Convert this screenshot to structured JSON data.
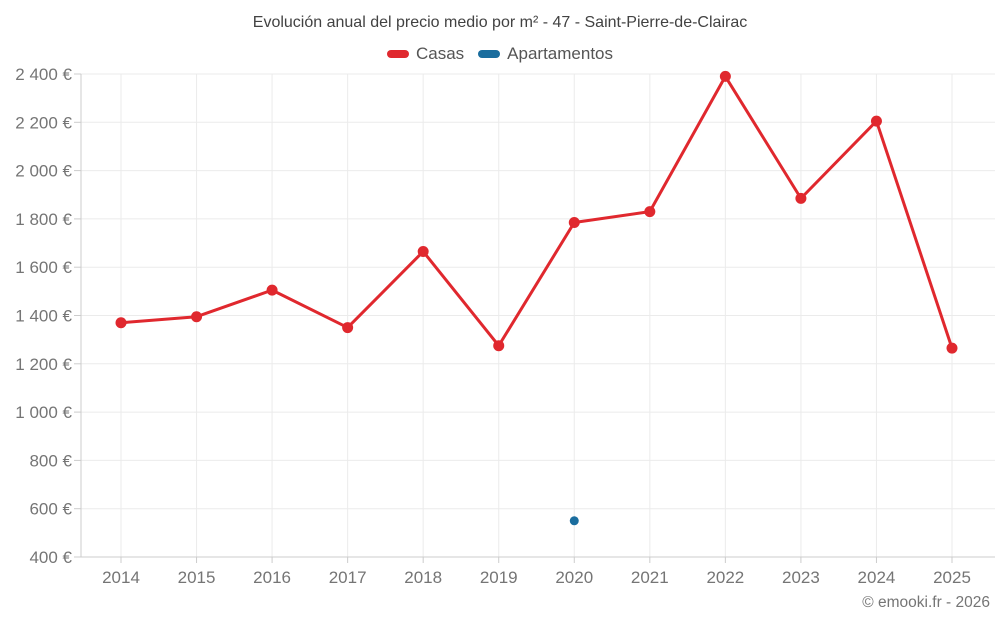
{
  "title": "Evolución anual del precio medio por m² - 47 - Saint-Pierre-de-Clairac",
  "copyright": "© emooki.fr - 2026",
  "legend": [
    {
      "label": "Casas",
      "color": "#e0282e"
    },
    {
      "label": "Apartamentos",
      "color": "#1a6d9e"
    }
  ],
  "colors": {
    "grid": "#ebebeb",
    "axis": "#cccccc",
    "tick": "#cccccc",
    "tick_label": "#757575",
    "title": "#424242",
    "casas": "#e0282e",
    "apartamentos": "#1a6d9e"
  },
  "chart_data": {
    "type": "line",
    "title": "Evolución anual del precio medio por m² - 47 - Saint-Pierre-de-Clairac",
    "categories": [
      "2014",
      "2015",
      "2016",
      "2017",
      "2018",
      "2019",
      "2020",
      "2021",
      "2022",
      "2023",
      "2024",
      "2025"
    ],
    "series": [
      {
        "name": "Casas",
        "color": "#e0282e",
        "values": [
          1370,
          1395,
          1505,
          1350,
          1665,
          1275,
          1785,
          1830,
          2390,
          1885,
          2205,
          1265
        ]
      },
      {
        "name": "Apartamentos",
        "color": "#1a6d9e",
        "values": [
          null,
          null,
          null,
          null,
          null,
          null,
          550,
          null,
          null,
          null,
          null,
          null
        ]
      }
    ],
    "xlabel": "",
    "ylabel": "",
    "ylim": [
      400,
      2400
    ],
    "ytick_step": 200,
    "yticks": [
      400,
      600,
      800,
      1000,
      1200,
      1400,
      1600,
      1800,
      2000,
      2200,
      2400
    ],
    "ytick_labels": [
      "400 €",
      "600 €",
      "800 €",
      "1 000 €",
      "1 200 €",
      "1 400 €",
      "1 600 €",
      "1 800 €",
      "2 000 €",
      "2 200 €",
      "2 400 €"
    ],
    "grid": true,
    "legend_position": "top"
  }
}
